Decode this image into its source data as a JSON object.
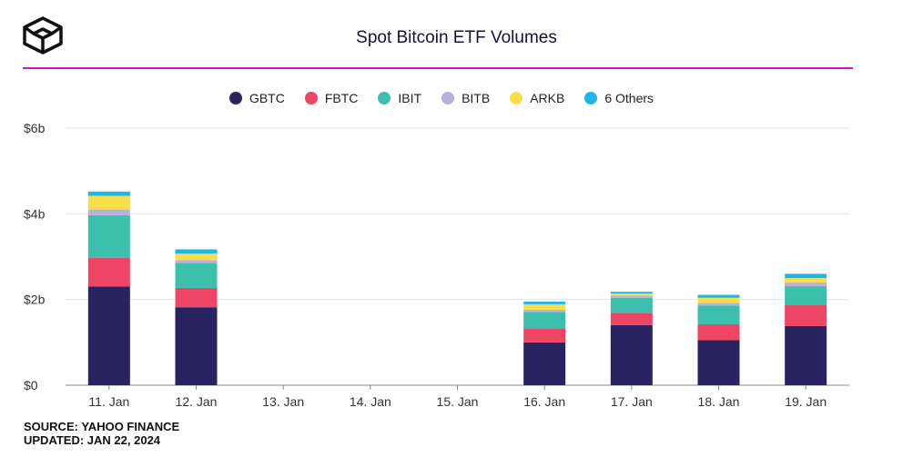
{
  "header": {
    "title": "Spot Bitcoin ETF Volumes"
  },
  "footer": {
    "source": "SOURCE: YAHOO FINANCE",
    "updated": "UPDATED: JAN 22, 2024"
  },
  "colors": {
    "accent_rule": "#c41bbf"
  },
  "chart_data": {
    "type": "bar",
    "stacked": true,
    "title": "Spot Bitcoin ETF Volumes",
    "xlabel": "",
    "ylabel": "",
    "categories": [
      "11. Jan",
      "12. Jan",
      "13. Jan",
      "14. Jan",
      "15. Jan",
      "16. Jan",
      "17. Jan",
      "18. Jan",
      "19. Jan"
    ],
    "ylim": [
      0,
      6
    ],
    "yticks": [
      0,
      2,
      4,
      6
    ],
    "ytick_labels": [
      "$0",
      "$2b",
      "$4b",
      "$6b"
    ],
    "grid": true,
    "legend_position": "top-center",
    "series": [
      {
        "name": "GBTC",
        "color": "#2a2361",
        "values": [
          2.3,
          1.82,
          0,
          0,
          0,
          1.0,
          1.4,
          1.05,
          1.38
        ]
      },
      {
        "name": "FBTC",
        "color": "#ef4565",
        "values": [
          0.67,
          0.45,
          0,
          0,
          0,
          0.33,
          0.29,
          0.37,
          0.5
        ]
      },
      {
        "name": "IBIT",
        "color": "#3dbfae",
        "values": [
          1.0,
          0.58,
          0,
          0,
          0,
          0.38,
          0.35,
          0.44,
          0.43
        ]
      },
      {
        "name": "BITB",
        "color": "#b8b0dd",
        "values": [
          0.13,
          0.07,
          0,
          0,
          0,
          0.05,
          0.05,
          0.06,
          0.09
        ]
      },
      {
        "name": "ARKB",
        "color": "#f9de4b",
        "values": [
          0.32,
          0.15,
          0,
          0,
          0,
          0.13,
          0.05,
          0.12,
          0.1
        ]
      },
      {
        "name": "6 Others",
        "color": "#1fb6e8",
        "values": [
          0.1,
          0.1,
          0,
          0,
          0,
          0.06,
          0.04,
          0.07,
          0.1
        ]
      }
    ]
  }
}
